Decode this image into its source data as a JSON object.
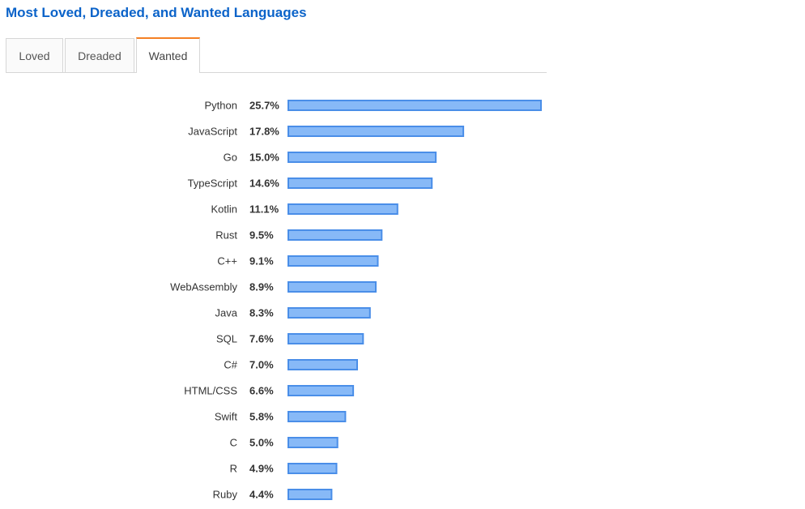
{
  "page": {
    "title": "Most Loved, Dreaded, and Wanted Languages"
  },
  "tabs": [
    {
      "label": "Loved",
      "active": false
    },
    {
      "label": "Dreaded",
      "active": false
    },
    {
      "label": "Wanted",
      "active": true
    }
  ],
  "colors": {
    "title": "#0b63c9",
    "active_tab_accent": "#f48024",
    "bar_fill": "#87b9f7",
    "bar_stroke": "#4a8ee8"
  },
  "chart_data": {
    "type": "bar",
    "orientation": "horizontal",
    "categories": [
      "Python",
      "JavaScript",
      "Go",
      "TypeScript",
      "Kotlin",
      "Rust",
      "C++",
      "WebAssembly",
      "Java",
      "SQL",
      "C#",
      "HTML/CSS",
      "Swift",
      "C",
      "R",
      "Ruby"
    ],
    "values": [
      25.7,
      17.8,
      15.0,
      14.6,
      11.1,
      9.5,
      9.1,
      8.9,
      8.3,
      7.6,
      7.0,
      6.6,
      5.8,
      5.0,
      4.9,
      4.4
    ],
    "value_labels": [
      "25.7%",
      "17.8%",
      "15.0%",
      "14.6%",
      "11.1%",
      "9.5%",
      "9.1%",
      "8.9%",
      "8.3%",
      "7.6%",
      "7.0%",
      "6.6%",
      "5.8%",
      "5.0%",
      "4.9%",
      "4.4%"
    ],
    "unit": "%",
    "grid": false,
    "legend": "none"
  }
}
